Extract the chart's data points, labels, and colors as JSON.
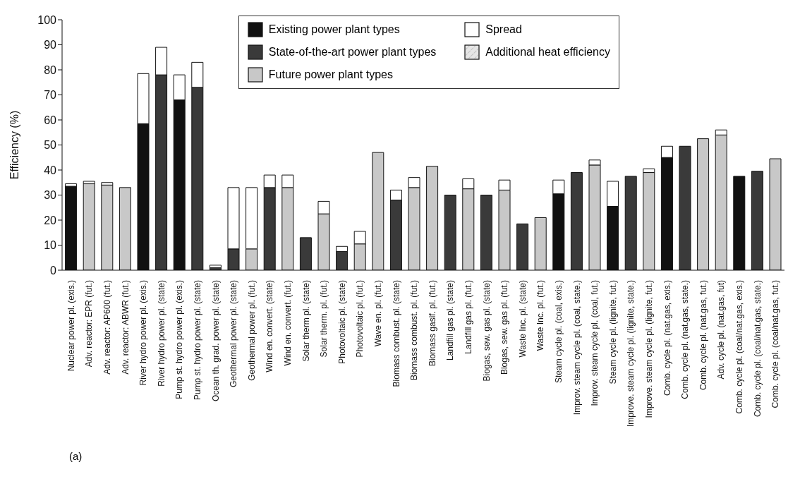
{
  "chart_data": {
    "type": "bar",
    "stacked": true,
    "ylabel": "Efficiency (%)",
    "ylim": [
      0,
      100
    ],
    "yticks": [
      0,
      10,
      20,
      30,
      40,
      50,
      60,
      70,
      80,
      90,
      100
    ],
    "legend": "top right",
    "annotations": [
      "(a)"
    ],
    "categories": [
      "Nuclear power pl. (exis.)",
      "Adv. reactor: EPR (fut.)",
      "Adv. reactor: AP600 (fut.)",
      "Adv. reactor: ABWR (fut.)",
      "River hydro power pl. (exis.)",
      "River hydro power pl. (state)",
      "Pump st. hydro power pl. (exis.)",
      "Pump st. hydro power pl. (state)",
      "Ocean th. grad. power pl. (state)",
      "Geothermal power pl. (state)",
      "Geothermal power pl. (fut.)",
      "Wind en. convert. (state)",
      "Wind en. convert. (fut.)",
      "Solar therm pl. (state)",
      "Solar therm. pl. (fut.)",
      "Photovoltaic pl. (state)",
      "Photovoltaic pl. (fut.)",
      "Wave en. pl. (fut.)",
      "Biomass combust. pl. (state)",
      "Biomass combust. pl. (fut.)",
      "Biomass gasif. pl. (fut.)",
      "Landfill gas pl. (state)",
      "Landfill gas pl. (fut.)",
      "Biogas, sew. gas pl. (state)",
      "Biogas, sew. gas pl. (fut.)",
      "Waste Inc. pl. (state)",
      "Waste Inc. pl. (fut.)",
      "Steam cycle pl. (coal, exis.)",
      "Improv. steam cycle pl. (coal, state.)",
      "Improv. steam cycle pl. (coal, fut.)",
      "Steam cycle pl. (lignite, fut.)",
      "Improve. steam cycle pl. (lignite, state.)",
      "Improve. steam cycle pl. (lignite, fut.)",
      "Comb. cycle pl. (nat.gas, exis.)",
      "Comb. cycle pl. (nat.gas, state.)",
      "Comb. cycle pl. (nat.gas, fut.)",
      "Adv. cycle pl. (nat.gas, fut)",
      "Comb. cycle pl. (coal/nat.gas, exis.)",
      "Comb. cycle pl. (coal/nat.gas, state.)",
      "Comb. cycle pl. (coal/nat.gas, fut.)"
    ],
    "series": [
      {
        "name": "Existing power plant types",
        "color": "#111111",
        "values": [
          33.5,
          null,
          null,
          null,
          58.5,
          null,
          68,
          null,
          null,
          null,
          null,
          null,
          null,
          null,
          null,
          null,
          null,
          null,
          null,
          null,
          null,
          null,
          null,
          null,
          null,
          null,
          null,
          30.5,
          null,
          null,
          25.5,
          null,
          null,
          45,
          null,
          null,
          null,
          37.5,
          null,
          null
        ]
      },
      {
        "name": "State-of-the-art power plant types",
        "color": "#3a3a3a",
        "values": [
          null,
          null,
          null,
          null,
          null,
          78,
          null,
          73,
          1,
          8.5,
          null,
          33,
          null,
          13,
          null,
          7.5,
          null,
          null,
          28,
          null,
          null,
          30,
          null,
          30,
          null,
          18.5,
          null,
          null,
          39,
          null,
          null,
          37.5,
          null,
          null,
          49.5,
          null,
          null,
          null,
          39.5,
          null
        ]
      },
      {
        "name": "Future power plant types",
        "color": "#c8c8c8",
        "values": [
          null,
          34.5,
          34,
          33,
          null,
          null,
          null,
          null,
          null,
          null,
          8.5,
          null,
          33,
          null,
          22.5,
          null,
          10.5,
          47,
          null,
          33,
          41.5,
          null,
          32.5,
          null,
          32,
          null,
          21,
          null,
          null,
          42,
          null,
          null,
          39,
          null,
          null,
          52.5,
          54,
          null,
          null,
          44.5
        ]
      },
      {
        "name": "Spread",
        "color": "#ffffff",
        "values": [
          1,
          1,
          1,
          null,
          20,
          11,
          10,
          10,
          1,
          24.5,
          24.5,
          5,
          5,
          null,
          5,
          2,
          5,
          null,
          4,
          4,
          null,
          null,
          4,
          null,
          4,
          null,
          null,
          5.5,
          null,
          2,
          10,
          null,
          1.5,
          4.5,
          null,
          null,
          2,
          null,
          null,
          null
        ]
      },
      {
        "name": "Additional heat efficiency",
        "color": "#e6e6e6",
        "values": [
          null,
          null,
          null,
          null,
          null,
          null,
          null,
          null,
          null,
          null,
          null,
          null,
          null,
          null,
          null,
          null,
          null,
          null,
          null,
          null,
          null,
          null,
          null,
          null,
          null,
          null,
          null,
          null,
          null,
          null,
          null,
          null,
          null,
          null,
          null,
          null,
          null,
          null,
          null,
          null
        ]
      }
    ]
  }
}
